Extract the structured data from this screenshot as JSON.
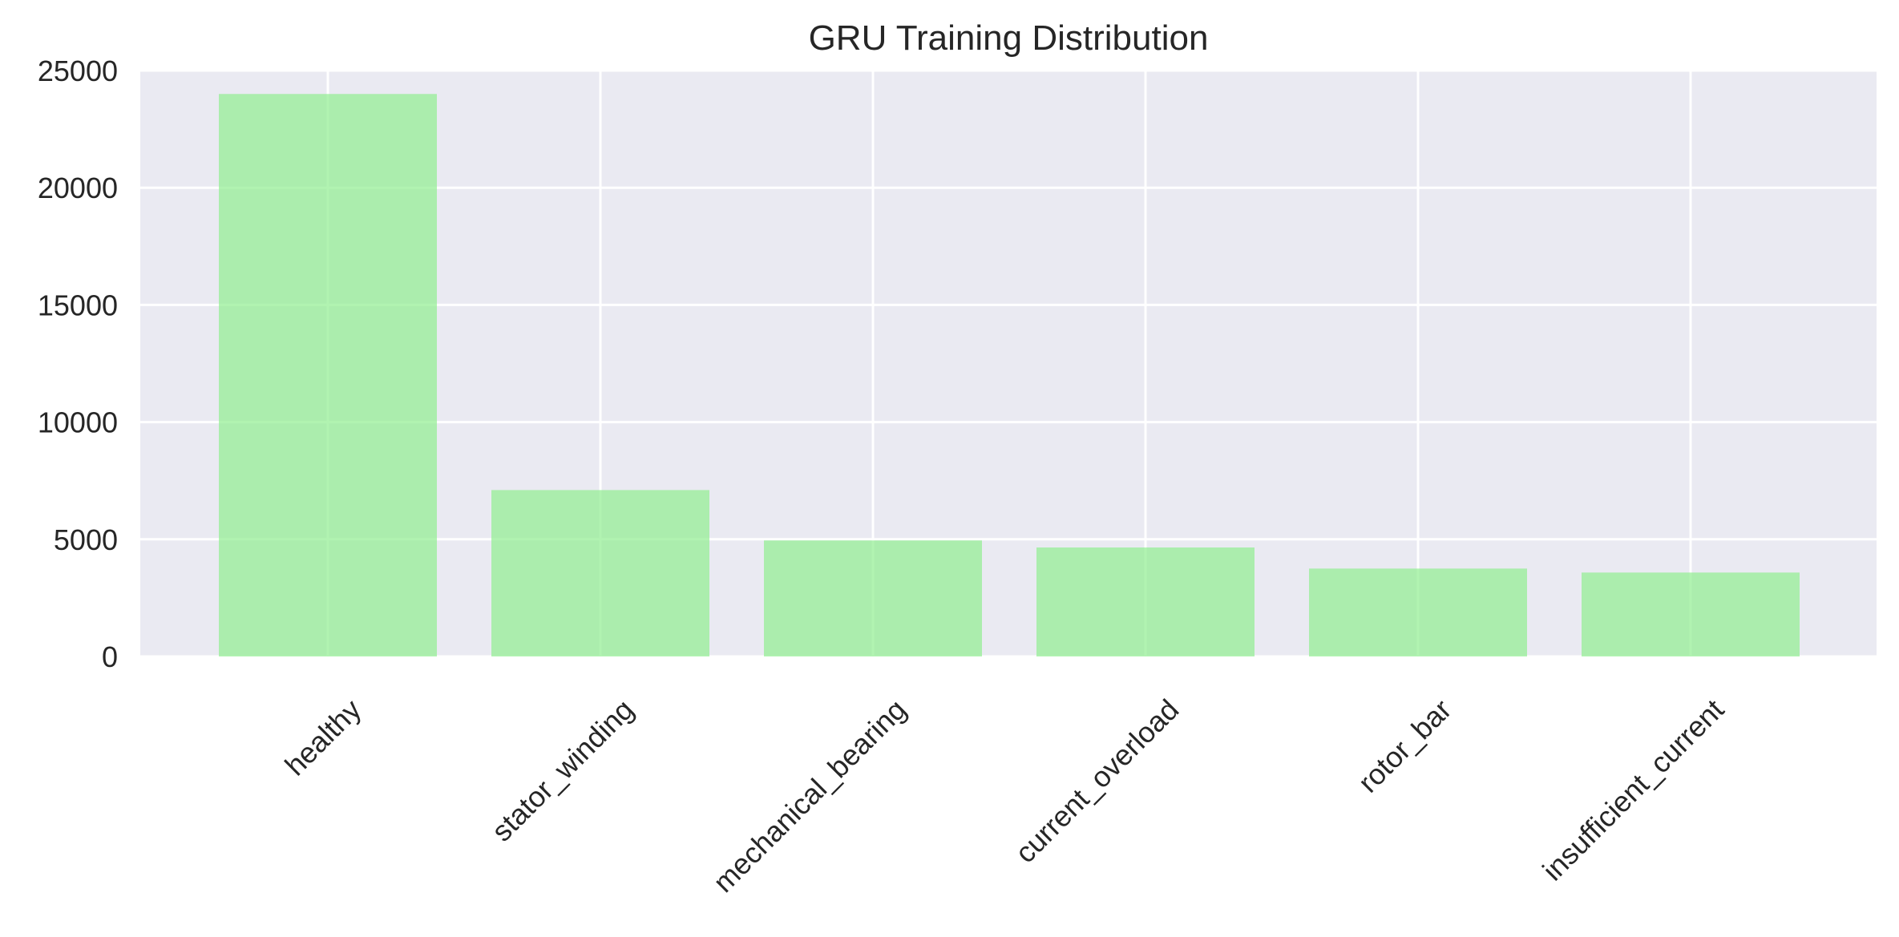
{
  "chart_data": {
    "type": "bar",
    "title": "GRU Training Distribution",
    "xlabel": "",
    "ylabel": "",
    "categories": [
      "healthy",
      "stator_winding",
      "mechanical_bearing",
      "current_overload",
      "rotor_bar",
      "insufficient_current"
    ],
    "values": [
      24000,
      7100,
      4950,
      4650,
      3750,
      3580
    ],
    "ylim": [
      0,
      25000
    ],
    "yticks": [
      0,
      5000,
      10000,
      15000,
      20000,
      25000
    ],
    "ytick_labels": [
      "0",
      "5000",
      "10000",
      "15000",
      "20000",
      "25000"
    ],
    "grid": true,
    "x_tick_rotation_deg": 45,
    "colors": {
      "bar": "#90ee90",
      "plot_background": "#eaeaf2",
      "grid": "#ffffff",
      "text": "#262626"
    }
  }
}
